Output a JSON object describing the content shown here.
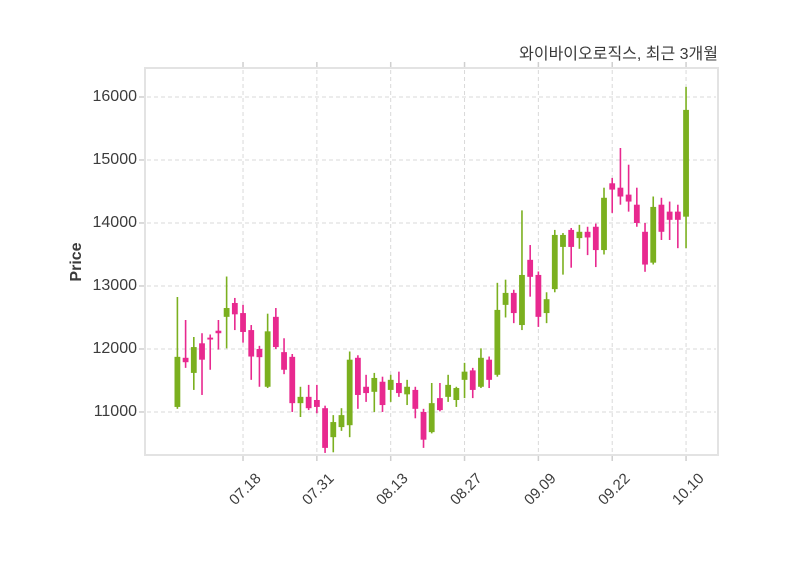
{
  "chart_data": {
    "type": "candlestick",
    "title": "와이바이오로직스, 최근 3개월",
    "ylabel": "Price",
    "ylim": [
      10317,
      16460
    ],
    "grid": "dashed",
    "legend": "none",
    "y_ticks": [
      16000,
      15000,
      14000,
      13000,
      12000,
      11000
    ],
    "x_ticks": [
      {
        "index": 8,
        "label": "07.18"
      },
      {
        "index": 17,
        "label": "07.31"
      },
      {
        "index": 26,
        "label": "08.13"
      },
      {
        "index": 35,
        "label": "08.27"
      },
      {
        "index": 44,
        "label": "09.09"
      },
      {
        "index": 53,
        "label": "09.22"
      },
      {
        "index": 62,
        "label": "10.10"
      }
    ],
    "colors": {
      "up": "#7bb01f",
      "down": "#e8298f"
    },
    "ohlc_format": [
      "open",
      "high",
      "low",
      "close"
    ],
    "candles": [
      [
        11080,
        12825,
        11050,
        11875
      ],
      [
        11860,
        12460,
        11700,
        11790
      ],
      [
        11620,
        12190,
        11350,
        12030
      ],
      [
        12090,
        12250,
        11270,
        11830
      ],
      [
        12180,
        12230,
        11670,
        12150
      ],
      [
        12290,
        12460,
        11990,
        12250
      ],
      [
        12510,
        13150,
        12010,
        12650
      ],
      [
        12730,
        12810,
        12300,
        12550
      ],
      [
        12570,
        12700,
        12100,
        12270
      ],
      [
        12300,
        12380,
        11510,
        11880
      ],
      [
        12000,
        12050,
        11400,
        11870
      ],
      [
        11400,
        12560,
        11380,
        12280
      ],
      [
        12510,
        12650,
        12000,
        12030
      ],
      [
        11950,
        12170,
        11600,
        11670
      ],
      [
        11875,
        11920,
        11000,
        11140
      ],
      [
        11140,
        11400,
        10920,
        11240
      ],
      [
        11240,
        11430,
        11030,
        11060
      ],
      [
        11190,
        11430,
        10980,
        11080
      ],
      [
        11060,
        11100,
        10350,
        10430
      ],
      [
        10600,
        10950,
        10360,
        10840
      ],
      [
        10760,
        11060,
        10700,
        10950
      ],
      [
        10790,
        11960,
        10600,
        11830
      ],
      [
        11860,
        11900,
        11050,
        11270
      ],
      [
        11400,
        11590,
        11160,
        11300
      ],
      [
        11320,
        11620,
        11000,
        11540
      ],
      [
        11480,
        11560,
        11000,
        11110
      ],
      [
        11350,
        11590,
        11160,
        11510
      ],
      [
        11460,
        11640,
        11240,
        11300
      ],
      [
        11280,
        11510,
        11110,
        11400
      ],
      [
        11350,
        11400,
        10900,
        11050
      ],
      [
        11000,
        11050,
        10430,
        10560
      ],
      [
        10680,
        11460,
        10660,
        11140
      ],
      [
        11220,
        11460,
        11010,
        11030
      ],
      [
        11240,
        11590,
        11160,
        11430
      ],
      [
        11190,
        11400,
        11080,
        11380
      ],
      [
        11510,
        11780,
        11220,
        11640
      ],
      [
        11660,
        11700,
        11220,
        11350
      ],
      [
        11400,
        12010,
        11380,
        11860
      ],
      [
        11830,
        11880,
        11380,
        11510
      ],
      [
        11590,
        13050,
        11560,
        12620
      ],
      [
        12700,
        13100,
        12500,
        12890
      ],
      [
        12890,
        12940,
        12410,
        12570
      ],
      [
        12380,
        14200,
        12300,
        13175
      ],
      [
        13415,
        13650,
        12830,
        13145
      ],
      [
        13175,
        13230,
        12350,
        12510
      ],
      [
        12570,
        12900,
        12410,
        12790
      ],
      [
        12950,
        13890,
        12900,
        13810
      ],
      [
        13620,
        13840,
        13180,
        13810
      ],
      [
        13890,
        13920,
        13290,
        13620
      ],
      [
        13760,
        13970,
        13590,
        13860
      ],
      [
        13860,
        13940,
        13490,
        13770
      ],
      [
        13940,
        13990,
        13300,
        13570
      ],
      [
        13570,
        14560,
        13500,
        14400
      ],
      [
        14630,
        14715,
        14160,
        14530
      ],
      [
        14560,
        15190,
        14290,
        14420
      ],
      [
        14450,
        14925,
        14180,
        14340
      ],
      [
        14290,
        14560,
        13940,
        14000
      ],
      [
        13860,
        14000,
        13225,
        13340
      ],
      [
        13370,
        14420,
        13340,
        14255
      ],
      [
        14290,
        14400,
        13730,
        13860
      ],
      [
        14180,
        14340,
        13730,
        14050
      ],
      [
        14180,
        14290,
        13600,
        14050
      ],
      [
        14100,
        16160,
        13600,
        15795
      ]
    ]
  }
}
